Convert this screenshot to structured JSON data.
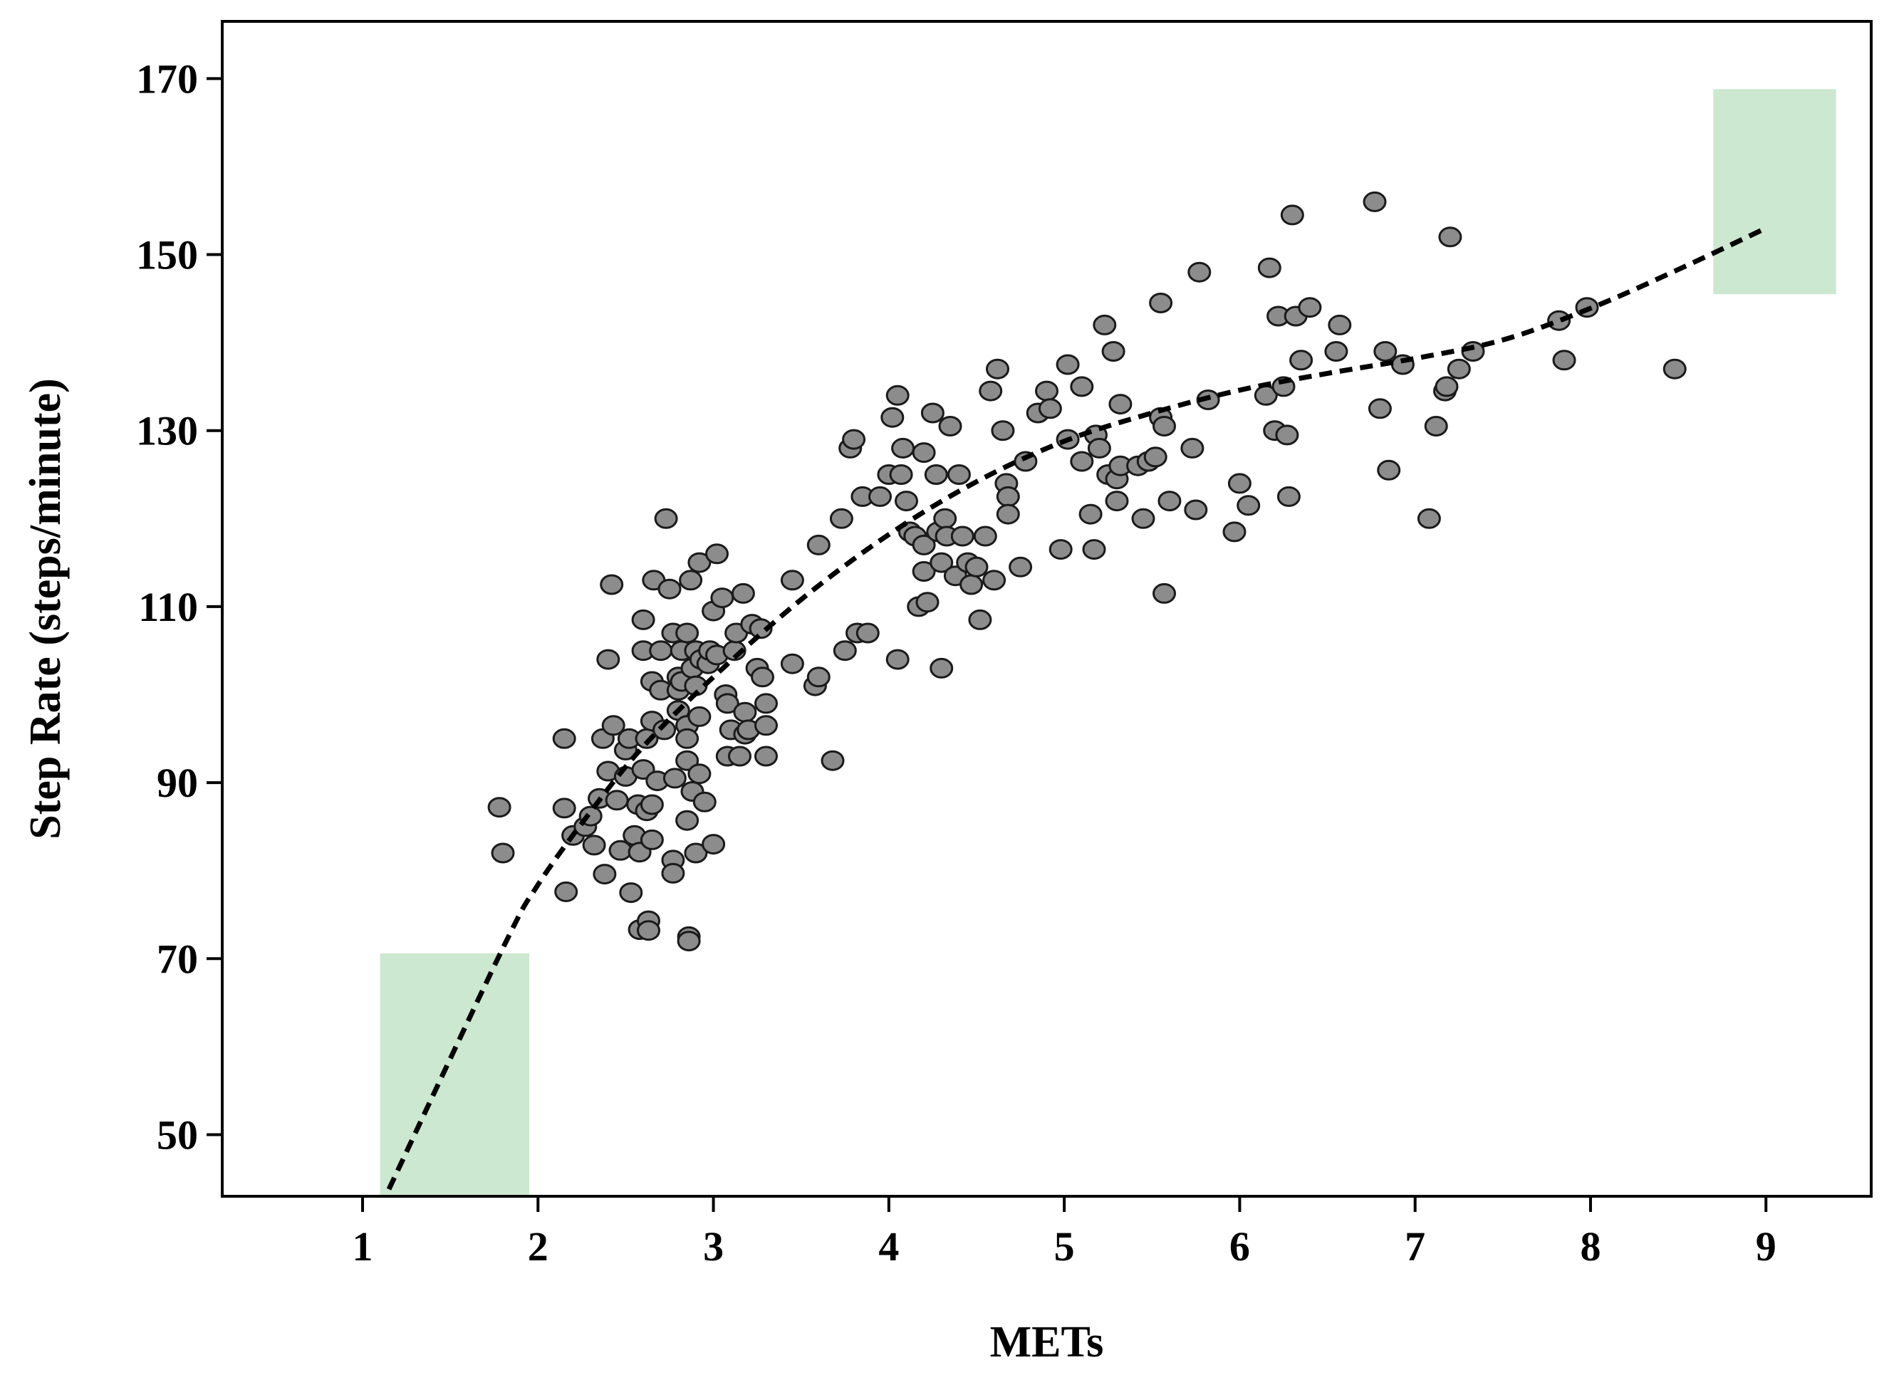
{
  "chart_data": {
    "type": "scatter",
    "title": "",
    "xlabel": "METs",
    "ylabel": "Step Rate (steps/minute)",
    "xlim": [
      0.2,
      9.6
    ],
    "ylim": [
      43,
      176.5
    ],
    "x_ticks": [
      1,
      2,
      3,
      4,
      5,
      6,
      7,
      8,
      9
    ],
    "y_ticks": [
      50,
      70,
      90,
      110,
      130,
      150,
      170
    ],
    "grid": false,
    "legend": "none",
    "colors": {
      "points_fill": "#8c8c8c",
      "points_stroke": "#1a1a1a",
      "fit_line": "#000000",
      "highlight_box": "#cce8d0"
    },
    "highlight_regions": [
      {
        "x": [
          1.1,
          1.95
        ],
        "y": [
          43,
          70.6
        ]
      },
      {
        "x": [
          8.7,
          9.4
        ],
        "y": [
          145.5,
          168.8
        ]
      }
    ],
    "fit_curve": {
      "style": "dashed",
      "x": [
        1.15,
        1.8,
        2.0,
        2.3,
        2.6,
        3.0,
        3.5,
        4.0,
        4.5,
        5.0,
        5.5,
        6.0,
        6.5,
        7.0,
        7.5,
        8.0,
        8.5,
        9.0
      ],
      "y": [
        43.8,
        71.2,
        78.4,
        86.7,
        94.1,
        102.0,
        110.8,
        118.2,
        124.2,
        128.8,
        132.0,
        134.6,
        136.5,
        138.2,
        140.3,
        143.9,
        148.3,
        153.0
      ]
    },
    "series": [
      {
        "points": [
          [
            1.78,
            87.2
          ],
          [
            1.8,
            82.0
          ],
          [
            2.15,
            95.0
          ],
          [
            2.15,
            87.1
          ],
          [
            2.16,
            77.6
          ],
          [
            2.2,
            84.0
          ],
          [
            2.27,
            85.0
          ],
          [
            2.3,
            86.2
          ],
          [
            2.32,
            82.9
          ],
          [
            2.35,
            88.2
          ],
          [
            2.37,
            95.0
          ],
          [
            2.38,
            79.6
          ],
          [
            2.4,
            104.0
          ],
          [
            2.4,
            91.3
          ],
          [
            2.42,
            112.5
          ],
          [
            2.43,
            96.5
          ],
          [
            2.45,
            88.0
          ],
          [
            2.47,
            82.3
          ],
          [
            2.5,
            93.7
          ],
          [
            2.5,
            90.7
          ],
          [
            2.52,
            95.0
          ],
          [
            2.53,
            77.5
          ],
          [
            2.55,
            84.0
          ],
          [
            2.57,
            87.5
          ],
          [
            2.58,
            73.3
          ],
          [
            2.58,
            82.1
          ],
          [
            2.6,
            108.5
          ],
          [
            2.6,
            105.0
          ],
          [
            2.6,
            91.5
          ],
          [
            2.62,
            95.0
          ],
          [
            2.62,
            86.8
          ],
          [
            2.63,
            74.3
          ],
          [
            2.63,
            73.2
          ],
          [
            2.65,
            101.5
          ],
          [
            2.65,
            97.0
          ],
          [
            2.65,
            87.5
          ],
          [
            2.65,
            83.5
          ],
          [
            2.66,
            113.0
          ],
          [
            2.68,
            90.2
          ],
          [
            2.7,
            105.0
          ],
          [
            2.7,
            100.5
          ],
          [
            2.72,
            96.0
          ],
          [
            2.73,
            120.0
          ],
          [
            2.75,
            112.0
          ],
          [
            2.77,
            107.0
          ],
          [
            2.77,
            81.2
          ],
          [
            2.77,
            79.7
          ],
          [
            2.78,
            90.5
          ],
          [
            2.8,
            102.0
          ],
          [
            2.8,
            98.2
          ],
          [
            2.8,
            100.5
          ],
          [
            2.82,
            105.0
          ],
          [
            2.82,
            101.5
          ],
          [
            2.85,
            107.0
          ],
          [
            2.85,
            96.5
          ],
          [
            2.85,
            95.0
          ],
          [
            2.85,
            92.5
          ],
          [
            2.85,
            85.7
          ],
          [
            2.86,
            72.5
          ],
          [
            2.86,
            72.0
          ],
          [
            2.87,
            113.0
          ],
          [
            2.88,
            103.0
          ],
          [
            2.88,
            89.0
          ],
          [
            2.9,
            105.0
          ],
          [
            2.9,
            101.0
          ],
          [
            2.9,
            82.0
          ],
          [
            2.92,
            115.0
          ],
          [
            2.92,
            97.5
          ],
          [
            2.92,
            91.0
          ],
          [
            2.93,
            104.0
          ],
          [
            2.95,
            87.8
          ],
          [
            2.97,
            103.5
          ],
          [
            2.98,
            105.0
          ],
          [
            3.0,
            109.5
          ],
          [
            3.0,
            83.0
          ],
          [
            3.02,
            116.0
          ],
          [
            3.02,
            104.5
          ],
          [
            3.05,
            111.0
          ],
          [
            3.07,
            100.0
          ],
          [
            3.08,
            99.0
          ],
          [
            3.08,
            93.0
          ],
          [
            3.1,
            96.0
          ],
          [
            3.12,
            105.0
          ],
          [
            3.13,
            107.0
          ],
          [
            3.15,
            93.0
          ],
          [
            3.17,
            111.5
          ],
          [
            3.18,
            98.0
          ],
          [
            3.18,
            95.5
          ],
          [
            3.2,
            96.0
          ],
          [
            3.22,
            108.0
          ],
          [
            3.25,
            103.0
          ],
          [
            3.27,
            107.5
          ],
          [
            3.28,
            102.0
          ],
          [
            3.3,
            99.0
          ],
          [
            3.3,
            96.5
          ],
          [
            3.3,
            93.0
          ],
          [
            3.45,
            103.5
          ],
          [
            3.45,
            113.0
          ],
          [
            3.58,
            101.0
          ],
          [
            3.6,
            102.0
          ],
          [
            3.6,
            117.0
          ],
          [
            3.68,
            92.5
          ],
          [
            3.73,
            120.0
          ],
          [
            3.75,
            105.0
          ],
          [
            3.78,
            128.0
          ],
          [
            3.8,
            129.0
          ],
          [
            3.82,
            107.0
          ],
          [
            3.85,
            122.5
          ],
          [
            3.88,
            107.0
          ],
          [
            3.95,
            122.5
          ],
          [
            4.0,
            125.0
          ],
          [
            4.02,
            131.5
          ],
          [
            4.05,
            134.0
          ],
          [
            4.05,
            104.0
          ],
          [
            4.07,
            125.0
          ],
          [
            4.08,
            128.0
          ],
          [
            4.1,
            122.0
          ],
          [
            4.12,
            118.5
          ],
          [
            4.15,
            118.0
          ],
          [
            4.17,
            110.0
          ],
          [
            4.2,
            117.0
          ],
          [
            4.2,
            114.0
          ],
          [
            4.2,
            127.5
          ],
          [
            4.22,
            110.5
          ],
          [
            4.25,
            132.0
          ],
          [
            4.27,
            125.0
          ],
          [
            4.28,
            118.5
          ],
          [
            4.3,
            115.0
          ],
          [
            4.3,
            103.0
          ],
          [
            4.32,
            120.0
          ],
          [
            4.33,
            118.0
          ],
          [
            4.35,
            130.5
          ],
          [
            4.38,
            113.5
          ],
          [
            4.4,
            125.0
          ],
          [
            4.42,
            118.0
          ],
          [
            4.45,
            115.0
          ],
          [
            4.47,
            112.5
          ],
          [
            4.5,
            114.5
          ],
          [
            4.52,
            108.5
          ],
          [
            4.55,
            118.0
          ],
          [
            4.58,
            134.5
          ],
          [
            4.6,
            113.0
          ],
          [
            4.62,
            137.0
          ],
          [
            4.65,
            130.0
          ],
          [
            4.67,
            124.0
          ],
          [
            4.68,
            122.5
          ],
          [
            4.68,
            120.5
          ],
          [
            4.75,
            114.5
          ],
          [
            4.78,
            126.5
          ],
          [
            4.85,
            132.0
          ],
          [
            4.9,
            134.5
          ],
          [
            4.92,
            132.5
          ],
          [
            4.98,
            116.5
          ],
          [
            5.02,
            137.5
          ],
          [
            5.02,
            129.0
          ],
          [
            5.1,
            135.0
          ],
          [
            5.1,
            126.5
          ],
          [
            5.15,
            120.5
          ],
          [
            5.17,
            116.5
          ],
          [
            5.18,
            129.5
          ],
          [
            5.2,
            128.0
          ],
          [
            5.23,
            142.0
          ],
          [
            5.25,
            125.0
          ],
          [
            5.28,
            139.0
          ],
          [
            5.3,
            124.5
          ],
          [
            5.3,
            122.0
          ],
          [
            5.32,
            126.0
          ],
          [
            5.32,
            133.0
          ],
          [
            5.42,
            126.0
          ],
          [
            5.45,
            120.0
          ],
          [
            5.48,
            126.5
          ],
          [
            5.52,
            127.0
          ],
          [
            5.55,
            131.5
          ],
          [
            5.55,
            144.5
          ],
          [
            5.57,
            130.5
          ],
          [
            5.57,
            111.5
          ],
          [
            5.6,
            122.0
          ],
          [
            5.73,
            128.0
          ],
          [
            5.75,
            121.0
          ],
          [
            5.77,
            148.0
          ],
          [
            5.82,
            133.5
          ],
          [
            5.97,
            118.5
          ],
          [
            6.0,
            124.0
          ],
          [
            6.05,
            121.5
          ],
          [
            6.15,
            134.0
          ],
          [
            6.17,
            148.5
          ],
          [
            6.2,
            130.0
          ],
          [
            6.22,
            143.0
          ],
          [
            6.25,
            135.0
          ],
          [
            6.27,
            129.5
          ],
          [
            6.28,
            122.5
          ],
          [
            6.3,
            154.5
          ],
          [
            6.32,
            143.0
          ],
          [
            6.35,
            138.0
          ],
          [
            6.4,
            144.0
          ],
          [
            6.55,
            139.0
          ],
          [
            6.57,
            142.0
          ],
          [
            6.77,
            156.0
          ],
          [
            6.8,
            132.5
          ],
          [
            6.83,
            139.0
          ],
          [
            6.85,
            125.5
          ],
          [
            6.93,
            137.5
          ],
          [
            7.08,
            120.0
          ],
          [
            7.12,
            130.5
          ],
          [
            7.17,
            134.5
          ],
          [
            7.18,
            135.0
          ],
          [
            7.2,
            152.0
          ],
          [
            7.25,
            137.0
          ],
          [
            7.33,
            139.0
          ],
          [
            7.82,
            142.5
          ],
          [
            7.85,
            138.0
          ],
          [
            7.98,
            144.0
          ],
          [
            8.48,
            137.0
          ]
        ]
      }
    ]
  }
}
